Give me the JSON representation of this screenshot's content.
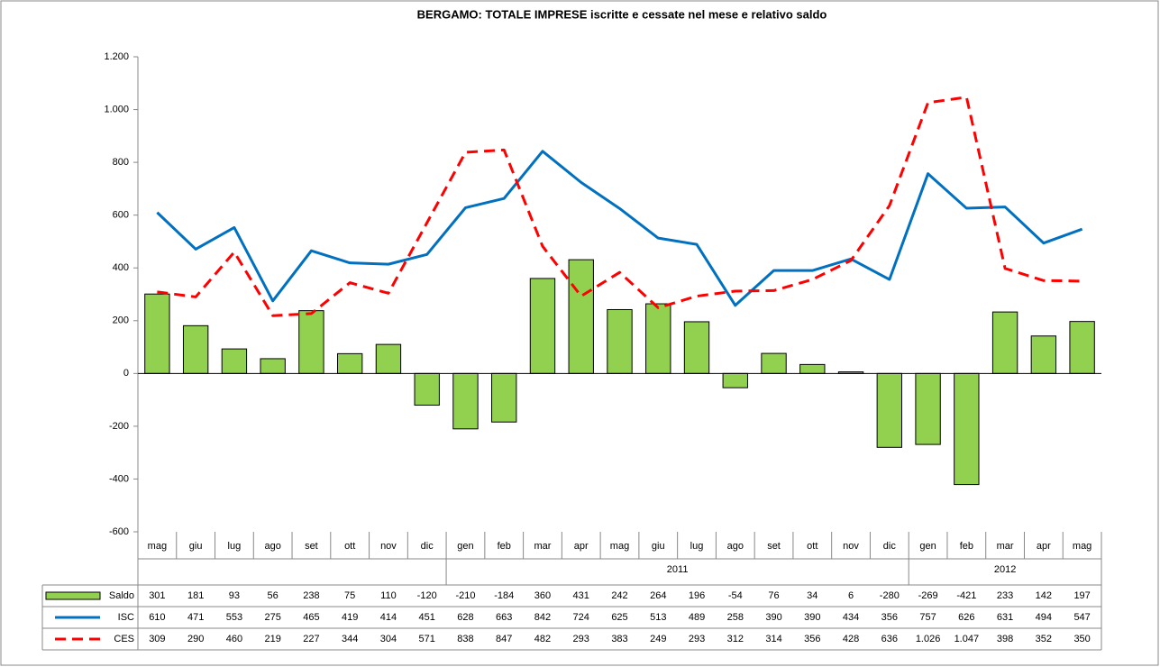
{
  "chart_data": {
    "type": "bar_line",
    "title": "BERGAMO: TOTALE IMPRESE iscritte e cessate nel mese e relativo saldo",
    "categories": [
      "mag",
      "giu",
      "lug",
      "ago",
      "set",
      "ott",
      "nov",
      "dic",
      "gen",
      "feb",
      "mar",
      "apr",
      "mag",
      "giu",
      "lug",
      "ago",
      "set",
      "ott",
      "nov",
      "dic",
      "gen",
      "feb",
      "mar",
      "apr",
      "mag"
    ],
    "category_groups": [
      {
        "label": "2011",
        "from": 8,
        "to": 19
      },
      {
        "label": "2012",
        "from": 20,
        "to": 24
      }
    ],
    "series": [
      {
        "name": "Saldo",
        "kind": "bar",
        "color": "#92d050",
        "values": [
          301,
          181,
          93,
          56,
          238,
          75,
          110,
          -120,
          -210,
          -184,
          360,
          431,
          242,
          264,
          196,
          -54,
          76,
          34,
          6,
          -280,
          -269,
          -421,
          233,
          142,
          197
        ]
      },
      {
        "name": "ISC",
        "kind": "line",
        "color": "#0070c0",
        "values": [
          610,
          471,
          553,
          275,
          465,
          419,
          414,
          451,
          628,
          663,
          842,
          724,
          625,
          513,
          489,
          258,
          390,
          390,
          434,
          356,
          757,
          626,
          631,
          494,
          547
        ]
      },
      {
        "name": "CES",
        "kind": "line",
        "dashed": true,
        "color": "#ff0000",
        "values": [
          309,
          290,
          460,
          219,
          227,
          344,
          304,
          571,
          838,
          847,
          482,
          293,
          383,
          249,
          293,
          312,
          314,
          356,
          428,
          636,
          1026,
          1047,
          398,
          352,
          350
        ],
        "value_labels": [
          "309",
          "290",
          "460",
          "219",
          "227",
          "344",
          "304",
          "571",
          "838",
          "847",
          "482",
          "293",
          "383",
          "249",
          "293",
          "312",
          "314",
          "356",
          "428",
          "636",
          "1.026",
          "1.047",
          "398",
          "352",
          "350"
        ]
      }
    ],
    "ylim": [
      -600,
      1200
    ],
    "yticks": [
      -600,
      -400,
      -200,
      0,
      200,
      400,
      600,
      800,
      {
        "value": 1000,
        "label": "1.000"
      },
      {
        "value": 1200,
        "label": "1.200"
      }
    ],
    "grid": false
  }
}
